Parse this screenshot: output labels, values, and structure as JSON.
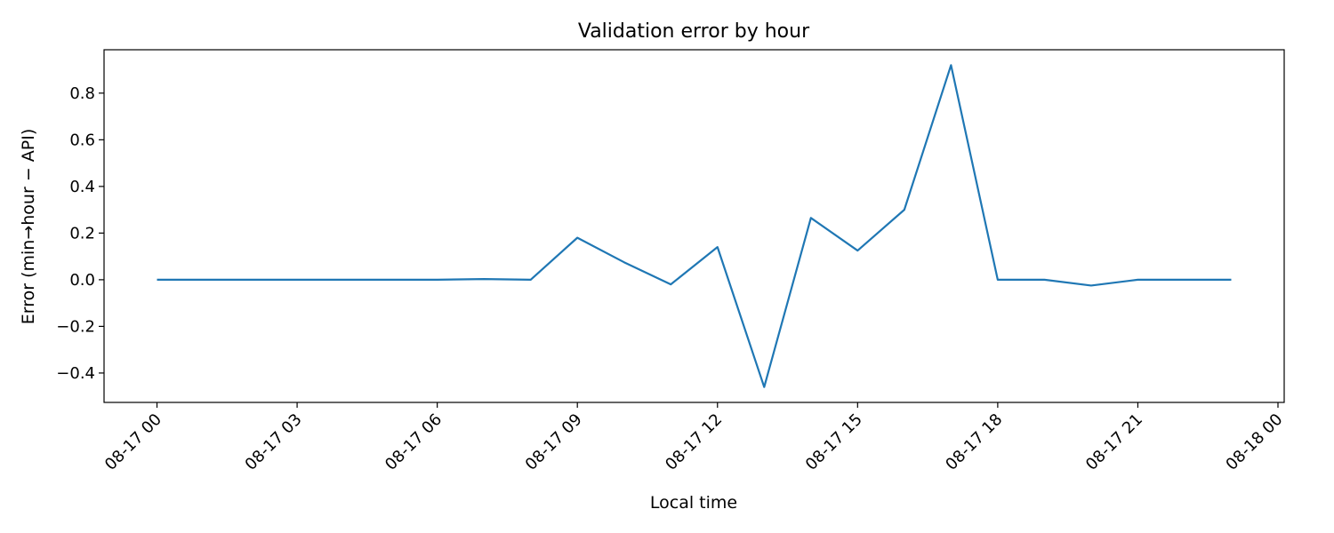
{
  "chart_data": {
    "type": "line",
    "title": "Validation error by hour",
    "xlabel": "Local time",
    "ylabel": "Error (min→hour − API)",
    "x": [
      "2023-08-17 00:00",
      "2023-08-17 01:00",
      "2023-08-17 02:00",
      "2023-08-17 03:00",
      "2023-08-17 04:00",
      "2023-08-17 05:00",
      "2023-08-17 06:00",
      "2023-08-17 07:00",
      "2023-08-17 08:00",
      "2023-08-17 09:00",
      "2023-08-17 10:00",
      "2023-08-17 11:00",
      "2023-08-17 12:00",
      "2023-08-17 13:00",
      "2023-08-17 14:00",
      "2023-08-17 15:00",
      "2023-08-17 16:00",
      "2023-08-17 17:00",
      "2023-08-17 18:00",
      "2023-08-17 19:00",
      "2023-08-17 20:00",
      "2023-08-17 21:00",
      "2023-08-17 22:00",
      "2023-08-17 23:00"
    ],
    "series": [
      {
        "values": [
          0.0,
          0.0,
          0.0,
          0.0,
          0.0,
          0.0,
          0.0,
          0.003,
          0.0,
          0.18,
          0.075,
          -0.02,
          0.14,
          -0.46,
          0.265,
          0.125,
          0.3,
          0.92,
          0.0,
          0.0,
          -0.025,
          0.0,
          0.0,
          0.0
        ],
        "color": "#1f77b4"
      }
    ],
    "xlim": [
      "2023-08-16 22:52",
      "2023-08-18 00:08"
    ],
    "ylim": [
      -0.526,
      0.986
    ],
    "x_ticks": [
      "2023-08-17 00:00",
      "2023-08-17 03:00",
      "2023-08-17 06:00",
      "2023-08-17 09:00",
      "2023-08-17 12:00",
      "2023-08-17 15:00",
      "2023-08-17 18:00",
      "2023-08-17 21:00",
      "2023-08-18 00:00"
    ],
    "x_tick_labels": [
      "08-17 00",
      "08-17 03",
      "08-17 06",
      "08-17 09",
      "08-17 12",
      "08-17 15",
      "08-17 18",
      "08-17 21",
      "08-18 00"
    ],
    "y_ticks": [
      -0.4,
      -0.2,
      0.0,
      0.2,
      0.4,
      0.6,
      0.8
    ],
    "y_tick_labels": [
      "−0.4",
      "−0.2",
      "0.0",
      "0.2",
      "0.4",
      "0.6",
      "0.8"
    ],
    "grid": false,
    "legend": "none"
  }
}
